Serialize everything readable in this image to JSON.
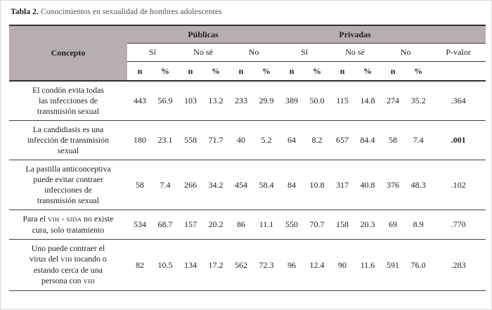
{
  "caption": {
    "label": "Tabla 2.",
    "text": "Conocimientos en sexualidad de hombres adolescentes"
  },
  "table": {
    "header": {
      "concept": "Concepto",
      "groups": [
        "Públicas",
        "Privadas"
      ],
      "responses": [
        "Sí",
        "No sé",
        "No",
        "Sí",
        "No sé",
        "No"
      ],
      "pvalue": "P-valor",
      "n": "n",
      "pct": "%"
    },
    "rows": [
      {
        "concept": "El condón evita todas\nlas infecciones de\ntransmisión sexual",
        "values": [
          "443",
          "56.9",
          "103",
          "13.2",
          "233",
          "29.9",
          "389",
          "50.0",
          "115",
          "14.8",
          "274",
          "35.2"
        ],
        "pvalue": ".364",
        "pvalue_bold": false
      },
      {
        "concept": "La candidiasis es una\ninfección de transmisión\nsexual",
        "values": [
          "180",
          "23.1",
          "558",
          "71.7",
          "40",
          "5.2",
          "64",
          "8.2",
          "657",
          "84.4",
          "58",
          "7.4"
        ],
        "pvalue": ".001",
        "pvalue_bold": true
      },
      {
        "concept": "La pastilla anticonceptiva\npuede evitar contraer\ninfecciones de\ntransmisión sexual",
        "values": [
          "58",
          "7.4",
          "266",
          "34.2",
          "454",
          "58.4",
          "84",
          "10.8",
          "317",
          "40.8",
          "376",
          "48.3"
        ],
        "pvalue": ".102",
        "pvalue_bold": false
      },
      {
        "concept": "Para el VIH - SIDA no existe\ncura, solo tratamiento",
        "values": [
          "534",
          "68.7",
          "157",
          "20.2",
          "86",
          "11.1",
          "550",
          "70.7",
          "158",
          "20.3",
          "69",
          "8.9"
        ],
        "pvalue": ".770",
        "pvalue_bold": false
      },
      {
        "concept": "Uno puede contraer el\nvirus del VIH tocando o\nestando cerca de una\npersona con VIH",
        "values": [
          "82",
          "10.5",
          "134",
          "17.2",
          "562",
          "72.3",
          "96",
          "12.4",
          "90",
          "11.6",
          "591",
          "76.0"
        ],
        "pvalue": ".283",
        "pvalue_bold": false
      }
    ]
  },
  "colors": {
    "header_bg": "#b6aeb0",
    "border_thick": "#332e30",
    "border_thin": "#424242",
    "text": "#1c1c1c",
    "caption_text": "#4f4f4f"
  }
}
